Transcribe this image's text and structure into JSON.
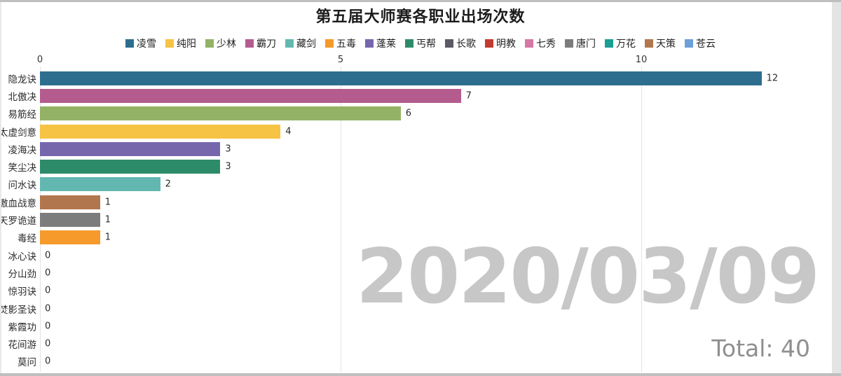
{
  "page": {
    "title": "第五届大师赛各职业出场次数",
    "watermark_date": "2020/03/09",
    "total_label": "Total: 40"
  },
  "legend": {
    "items": [
      {
        "label": "凌雪",
        "color": "#2d6e8f"
      },
      {
        "label": "纯阳",
        "color": "#f6c344"
      },
      {
        "label": "少林",
        "color": "#93b266"
      },
      {
        "label": "霸刀",
        "color": "#b35c8d"
      },
      {
        "label": "藏剑",
        "color": "#62b8b0"
      },
      {
        "label": "五毒",
        "color": "#f59a2b"
      },
      {
        "label": "蓬莱",
        "color": "#7667ad"
      },
      {
        "label": "丐帮",
        "color": "#2e8b69"
      },
      {
        "label": "长歌",
        "color": "#5b5b66"
      },
      {
        "label": "明教",
        "color": "#c23b2e"
      },
      {
        "label": "七秀",
        "color": "#d678a8"
      },
      {
        "label": "唐门",
        "color": "#7c7c7c"
      },
      {
        "label": "万花",
        "color": "#1b9e93"
      },
      {
        "label": "天策",
        "color": "#b2764e"
      },
      {
        "label": "苍云",
        "color": "#6f9fd8"
      }
    ]
  },
  "chart_data": {
    "type": "bar",
    "orientation": "horizontal",
    "title": "第五届大师赛各职业出场次数",
    "categories": [
      "隐龙诀",
      "北傲决",
      "易筋经",
      "太虚剑意",
      "凌海决",
      "笑尘决",
      "问水诀",
      "傲血战意",
      "天罗诡道",
      "毒经",
      "冰心诀",
      "分山劲",
      "惊羽诀",
      "焚影圣诀",
      "紫霞功",
      "花间游",
      "莫问"
    ],
    "values": [
      12,
      7,
      6,
      4,
      3,
      3,
      2,
      1,
      1,
      1,
      0,
      0,
      0,
      0,
      0,
      0,
      0
    ],
    "colors": [
      "#2d6e8f",
      "#b35c8d",
      "#93b266",
      "#f6c344",
      "#7667ad",
      "#2e8b69",
      "#62b8b0",
      "#b2764e",
      "#7c7c7c",
      "#f59a2b",
      "#d678a8",
      "#6f9fd8",
      "#7c7c7c",
      "#c23b2e",
      "#f6c344",
      "#1b9e93",
      "#5b5b66"
    ],
    "xlabel": "",
    "ylabel": "",
    "xlim": [
      0,
      13.3
    ],
    "xticks": [
      0,
      5,
      10
    ],
    "grid": true,
    "legend_position": "top",
    "value_labels": true,
    "annotations": [
      "2020/03/09",
      "Total: 40"
    ]
  }
}
